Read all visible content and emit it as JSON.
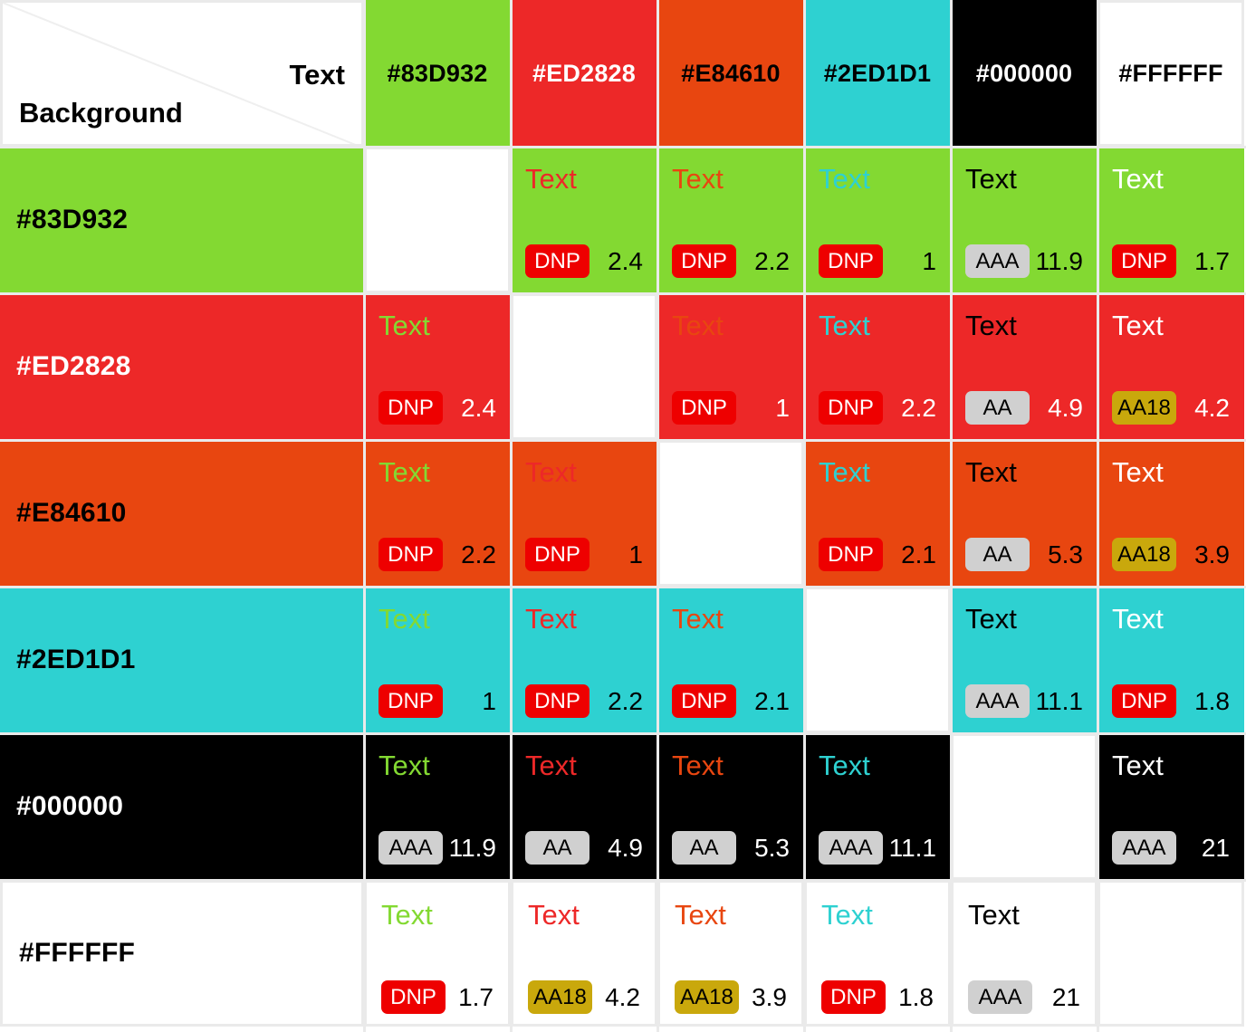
{
  "corner": {
    "text_label": "Text",
    "background_label": "Background"
  },
  "colors": [
    "#83D932",
    "#ED2828",
    "#E84610",
    "#2ED1D1",
    "#000000",
    "#FFFFFF"
  ],
  "header_text_colors": [
    "#000000",
    "#FFFFFF",
    "#000000",
    "#000000",
    "#FFFFFF",
    "#000000"
  ],
  "row_label_colors": [
    "#000000",
    "#FFFFFF",
    "#000000",
    "#000000",
    "#FFFFFF",
    "#000000"
  ],
  "sample_text": "Text",
  "rows": [
    {
      "label": "#83D932",
      "cells": [
        null,
        {
          "rating": "DNP",
          "ratio": "2.4"
        },
        {
          "rating": "DNP",
          "ratio": "2.2"
        },
        {
          "rating": "DNP",
          "ratio": "1"
        },
        {
          "rating": "AAA",
          "ratio": "11.9"
        },
        {
          "rating": "DNP",
          "ratio": "1.7"
        }
      ]
    },
    {
      "label": "#ED2828",
      "cells": [
        {
          "rating": "DNP",
          "ratio": "2.4"
        },
        null,
        {
          "rating": "DNP",
          "ratio": "1"
        },
        {
          "rating": "DNP",
          "ratio": "2.2"
        },
        {
          "rating": "AA",
          "ratio": "4.9"
        },
        {
          "rating": "AA18",
          "ratio": "4.2"
        }
      ]
    },
    {
      "label": "#E84610",
      "cells": [
        {
          "rating": "DNP",
          "ratio": "2.2"
        },
        {
          "rating": "DNP",
          "ratio": "1"
        },
        null,
        {
          "rating": "DNP",
          "ratio": "2.1"
        },
        {
          "rating": "AA",
          "ratio": "5.3"
        },
        {
          "rating": "AA18",
          "ratio": "3.9"
        }
      ]
    },
    {
      "label": "#2ED1D1",
      "cells": [
        {
          "rating": "DNP",
          "ratio": "1"
        },
        {
          "rating": "DNP",
          "ratio": "2.2"
        },
        {
          "rating": "DNP",
          "ratio": "2.1"
        },
        null,
        {
          "rating": "AAA",
          "ratio": "11.1"
        },
        {
          "rating": "DNP",
          "ratio": "1.8"
        }
      ]
    },
    {
      "label": "#000000",
      "cells": [
        {
          "rating": "AAA",
          "ratio": "11.9"
        },
        {
          "rating": "AA",
          "ratio": "4.9"
        },
        {
          "rating": "AA",
          "ratio": "5.3"
        },
        {
          "rating": "AAA",
          "ratio": "11.1"
        },
        null,
        {
          "rating": "AAA",
          "ratio": "21"
        }
      ]
    },
    {
      "label": "#FFFFFF",
      "cells": [
        {
          "rating": "DNP",
          "ratio": "1.7"
        },
        {
          "rating": "AA18",
          "ratio": "4.2"
        },
        {
          "rating": "AA18",
          "ratio": "3.9"
        },
        {
          "rating": "DNP",
          "ratio": "1.8"
        },
        {
          "rating": "AAA",
          "ratio": "21"
        },
        null
      ]
    }
  ],
  "badge_styles": {
    "DNP": {
      "background": "#EE0000",
      "color": "#FFFFFF"
    },
    "AA": {
      "background": "#D0D0D0",
      "color": "#000000"
    },
    "AAA": {
      "background": "#D0D0D0",
      "color": "#000000"
    },
    "AA18": {
      "background": "#C9A80C",
      "color": "#000000"
    }
  },
  "grid_line_color": "#EAEAEA"
}
